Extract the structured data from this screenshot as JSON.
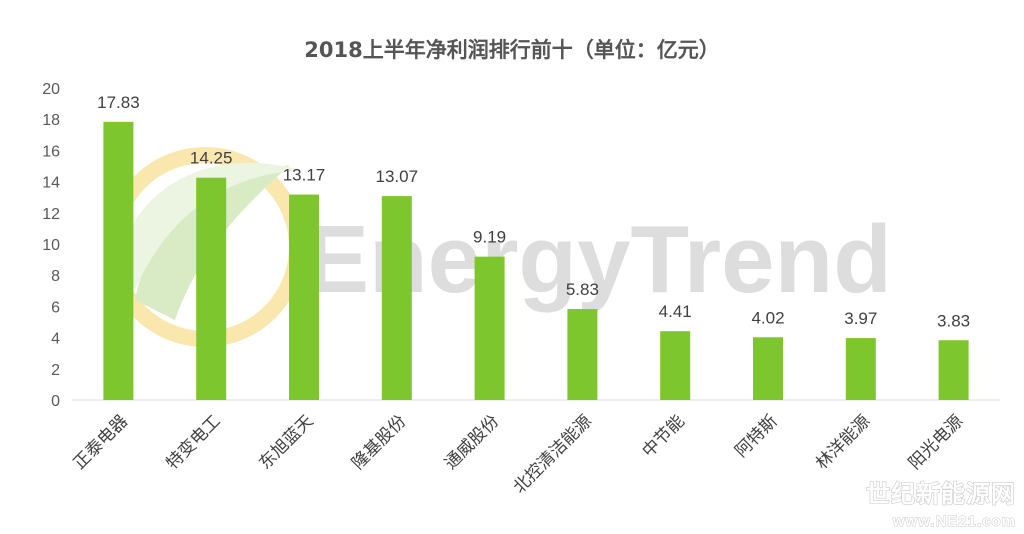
{
  "chart_data": {
    "type": "bar",
    "title": "2018上半年净利润排行前十（单位：亿元）",
    "categories": [
      "正泰电器",
      "特变电工",
      "东旭蓝天",
      "隆基股份",
      "通威股份",
      "北控清洁能源",
      "中节能",
      "阿特斯",
      "林洋能源",
      "阳光电源"
    ],
    "values": [
      17.83,
      14.25,
      13.17,
      13.07,
      9.19,
      5.83,
      4.41,
      4.02,
      3.97,
      3.83
    ],
    "value_labels": [
      "17.83",
      "14.25",
      "13.17",
      "13.07",
      "9.19",
      "5.83",
      "4.41",
      "4.02",
      "3.97",
      "3.83"
    ],
    "yticks": [
      "0",
      "2",
      "4",
      "6",
      "8",
      "10",
      "12",
      "14",
      "16",
      "18",
      "20"
    ],
    "ylim": [
      0,
      20
    ],
    "xlabel": "",
    "ylabel": "",
    "grid": false,
    "legend": "none",
    "bar_color": "#7dc62d"
  },
  "watermark": {
    "brand_text": "EnergyTrend",
    "corner_title": "世纪新能源网",
    "corner_url": "www.NE21.com"
  }
}
